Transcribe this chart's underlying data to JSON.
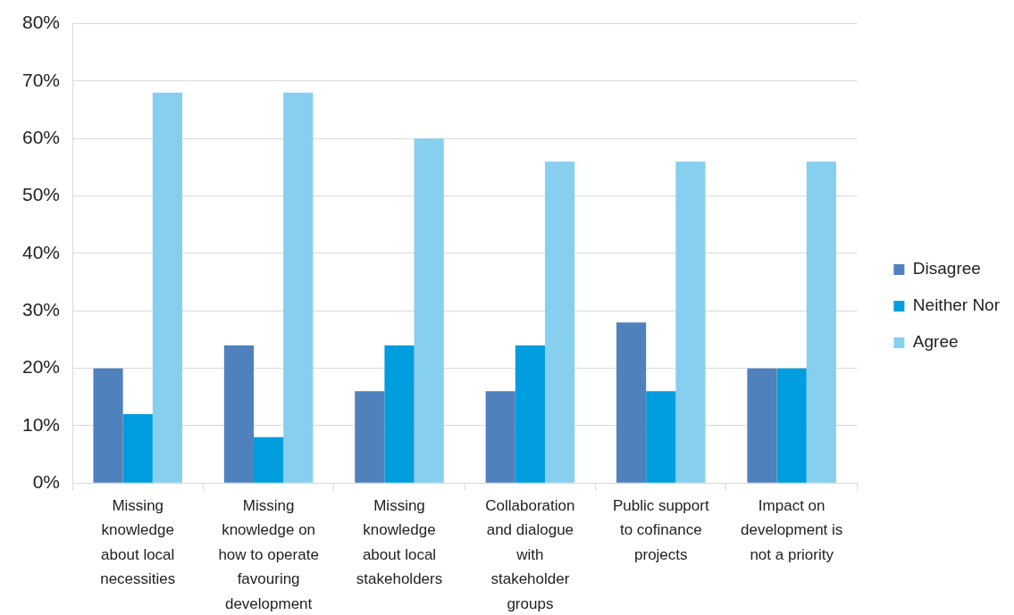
{
  "chart_data": {
    "type": "bar",
    "categories": [
      "Missing knowledge about local necessities",
      "Missing knowledge on how to operate favouring development",
      "Missing knowledge about local stakeholders",
      "Collaboration and dialogue with stakeholder groups",
      "Public support to cofinance projects",
      "Impact on development is not a priority"
    ],
    "series": [
      {
        "name": "Disagree",
        "color": "#4f81bd",
        "values": [
          20,
          24,
          16,
          16,
          28,
          20
        ]
      },
      {
        "name": "Neither Nor",
        "color": "#009ddf",
        "values": [
          12,
          8,
          24,
          24,
          16,
          20
        ]
      },
      {
        "name": "Agree",
        "color": "#87cfef",
        "values": [
          68,
          68,
          60,
          56,
          56,
          56
        ]
      }
    ],
    "ylim": [
      0,
      80
    ],
    "yticks": [
      {
        "value": 0,
        "label": "0%"
      },
      {
        "value": 10,
        "label": "10%"
      },
      {
        "value": 20,
        "label": "20%"
      },
      {
        "value": 30,
        "label": "30%"
      },
      {
        "value": 40,
        "label": "40%"
      },
      {
        "value": 50,
        "label": "50%"
      },
      {
        "value": 60,
        "label": "60%"
      },
      {
        "value": 70,
        "label": "70%"
      },
      {
        "value": 80,
        "label": "80%"
      }
    ],
    "grid": "y",
    "legend": "right"
  }
}
